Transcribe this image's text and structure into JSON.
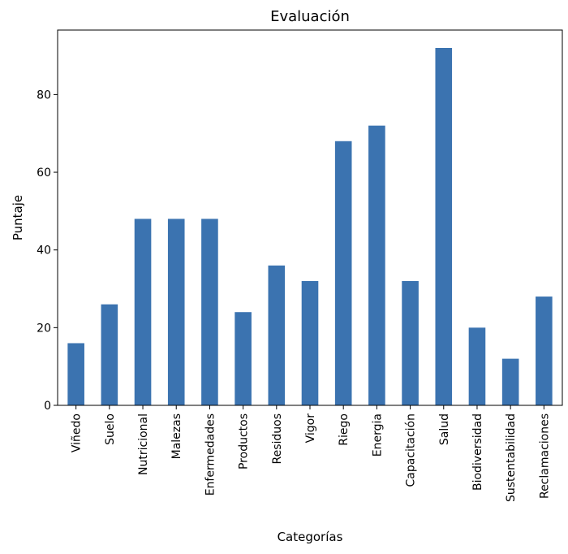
{
  "chart_data": {
    "type": "bar",
    "title": "Evaluación",
    "xlabel": "Categorías",
    "ylabel": "Puntaje",
    "categories": [
      "Viñedo",
      "Suelo",
      "Nutricional",
      "Malezas",
      "Enfermedades",
      "Productos",
      "Residuos",
      "Vigor",
      "Riego",
      "Energia",
      "Capacitación",
      "Salud",
      "Biodiversidad",
      "Sustentabilidad",
      "Reclamaciones"
    ],
    "values": [
      16,
      26,
      48,
      48,
      48,
      24,
      36,
      32,
      68,
      72,
      32,
      92,
      20,
      12,
      28
    ],
    "ylim": [
      0,
      96.6
    ],
    "yticks": [
      0,
      20,
      40,
      60,
      80
    ],
    "grid": false,
    "bar_color": "#3b73b0"
  }
}
